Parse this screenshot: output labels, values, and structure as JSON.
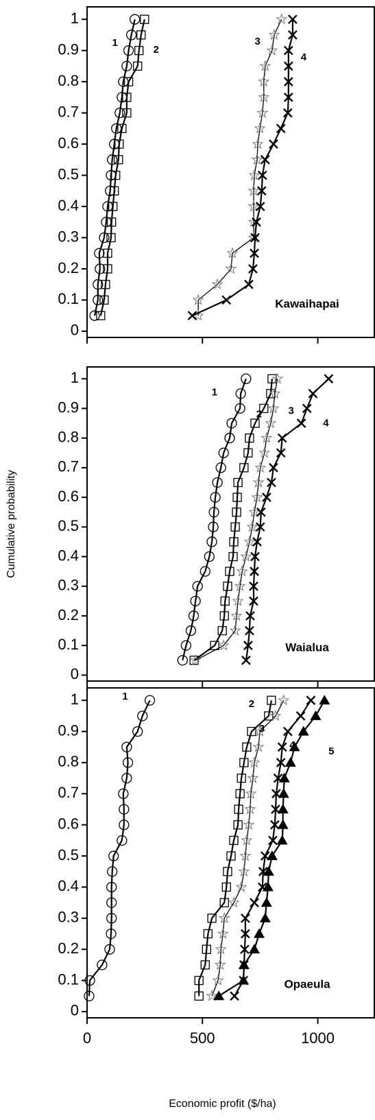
{
  "chart_data": [
    {
      "type": "line",
      "annotation": "Kawaihapai",
      "xlim": [
        0,
        1245
      ],
      "ylim": [
        -0.02,
        1.04
      ],
      "yticks": [
        0,
        0.1,
        0.2,
        0.3,
        0.4,
        0.5,
        0.6,
        0.7,
        0.8,
        0.9,
        1
      ],
      "series": [
        {
          "name": "1",
          "marker": "circle",
          "color": "#000000",
          "x": [
            33,
            47,
            47,
            56,
            53,
            74,
            83,
            89,
            100,
            104,
            109,
            118,
            127,
            142,
            151,
            157,
            172,
            180,
            192,
            207
          ],
          "values": [
            0.05,
            0.1,
            0.15,
            0.2,
            0.25,
            0.3,
            0.35,
            0.4,
            0.45,
            0.5,
            0.55,
            0.6,
            0.65,
            0.7,
            0.75,
            0.8,
            0.85,
            0.9,
            0.95,
            1
          ]
        },
        {
          "name": "2",
          "marker": "square",
          "color": "#000000",
          "x": [
            59,
            74,
            80,
            89,
            89,
            104,
            106,
            112,
            118,
            124,
            136,
            139,
            151,
            172,
            172,
            180,
            219,
            225,
            234,
            249
          ],
          "values": [
            0.05,
            0.1,
            0.15,
            0.2,
            0.25,
            0.3,
            0.35,
            0.4,
            0.45,
            0.5,
            0.55,
            0.6,
            0.65,
            0.7,
            0.75,
            0.8,
            0.85,
            0.9,
            0.95,
            1
          ]
        },
        {
          "name": "3",
          "marker": "star",
          "color": "#777777",
          "x": [
            482,
            482,
            565,
            624,
            630,
            722,
            722,
            722,
            722,
            725,
            737,
            740,
            749,
            760,
            766,
            766,
            772,
            802,
            811,
            843
          ],
          "values": [
            0.05,
            0.1,
            0.15,
            0.2,
            0.25,
            0.3,
            0.35,
            0.4,
            0.45,
            0.5,
            0.55,
            0.6,
            0.65,
            0.7,
            0.75,
            0.8,
            0.85,
            0.9,
            0.95,
            1
          ]
        },
        {
          "name": "4",
          "marker": "cross",
          "color": "#000000",
          "x": [
            456,
            604,
            701,
            719,
            725,
            728,
            734,
            751,
            757,
            760,
            772,
            808,
            840,
            870,
            873,
            873,
            873,
            873,
            891,
            891
          ],
          "values": [
            0.05,
            0.1,
            0.15,
            0.2,
            0.25,
            0.3,
            0.35,
            0.4,
            0.45,
            0.5,
            0.55,
            0.6,
            0.65,
            0.7,
            0.75,
            0.8,
            0.85,
            0.9,
            0.95,
            1
          ]
        }
      ]
    },
    {
      "type": "line",
      "annotation": "Waialua",
      "ylabel": "Cumulative probability",
      "xlim": [
        0,
        1245
      ],
      "ylim": [
        -0.02,
        1.04
      ],
      "yticks": [
        0,
        0.1,
        0.2,
        0.3,
        0.4,
        0.5,
        0.6,
        0.7,
        0.8,
        0.9,
        1
      ],
      "series": [
        {
          "name": "1",
          "marker": "circle",
          "color": "#000000",
          "x": [
            414,
            429,
            450,
            462,
            470,
            479,
            512,
            530,
            541,
            547,
            550,
            556,
            565,
            580,
            592,
            618,
            627,
            663,
            666,
            689
          ],
          "values": [
            0.05,
            0.1,
            0.15,
            0.2,
            0.25,
            0.3,
            0.35,
            0.4,
            0.45,
            0.5,
            0.55,
            0.6,
            0.65,
            0.7,
            0.75,
            0.8,
            0.85,
            0.9,
            0.95,
            1
          ]
        },
        {
          "name": "2",
          "marker": "square",
          "color": "#000000",
          "x": [
            464,
            553,
            586,
            595,
            598,
            609,
            618,
            633,
            636,
            642,
            648,
            651,
            654,
            680,
            698,
            704,
            728,
            766,
            796,
            802
          ],
          "values": [
            0.05,
            0.1,
            0.15,
            0.2,
            0.25,
            0.3,
            0.35,
            0.4,
            0.45,
            0.5,
            0.55,
            0.6,
            0.65,
            0.7,
            0.75,
            0.8,
            0.85,
            0.9,
            0.95,
            1
          ]
        },
        {
          "name": "3",
          "marker": "star",
          "color": "#777777",
          "x": [
            470,
            592,
            642,
            648,
            654,
            663,
            672,
            689,
            704,
            716,
            725,
            737,
            743,
            751,
            769,
            778,
            796,
            808,
            814,
            825
          ],
          "values": [
            0.05,
            0.1,
            0.15,
            0.2,
            0.25,
            0.3,
            0.35,
            0.4,
            0.45,
            0.5,
            0.55,
            0.6,
            0.65,
            0.7,
            0.75,
            0.8,
            0.85,
            0.9,
            0.95,
            1
          ]
        },
        {
          "name": "4",
          "marker": "cross",
          "color": "#000000",
          "x": [
            689,
            698,
            704,
            707,
            722,
            722,
            725,
            728,
            737,
            751,
            754,
            778,
            799,
            808,
            840,
            846,
            929,
            953,
            979,
            1047
          ],
          "values": [
            0.05,
            0.1,
            0.15,
            0.2,
            0.25,
            0.3,
            0.35,
            0.4,
            0.45,
            0.5,
            0.55,
            0.6,
            0.65,
            0.7,
            0.75,
            0.8,
            0.85,
            0.9,
            0.95,
            1
          ]
        }
      ]
    },
    {
      "type": "line",
      "annotation": "Opaeula",
      "xlabel": "Economic profit ($/ha)",
      "xlim": [
        0,
        1245
      ],
      "ylim": [
        -0.02,
        1.04
      ],
      "xticks": [
        0,
        500,
        1000
      ],
      "yticks": [
        0,
        0.1,
        0.2,
        0.3,
        0.4,
        0.5,
        0.6,
        0.7,
        0.8,
        0.9,
        1
      ],
      "series": [
        {
          "name": "1",
          "marker": "circle",
          "color": "#000000",
          "x": [
            9,
            12,
            65,
            98,
            104,
            106,
            106,
            106,
            109,
            115,
            151,
            160,
            160,
            157,
            172,
            177,
            172,
            219,
            240,
            272
          ],
          "values": [
            0.05,
            0.1,
            0.15,
            0.2,
            0.25,
            0.3,
            0.35,
            0.4,
            0.45,
            0.5,
            0.55,
            0.6,
            0.65,
            0.7,
            0.75,
            0.8,
            0.85,
            0.9,
            0.95,
            1
          ]
        },
        {
          "name": "2",
          "marker": "square",
          "color": "#000000",
          "x": [
            485,
            485,
            512,
            518,
            524,
            541,
            595,
            604,
            609,
            624,
            636,
            654,
            657,
            663,
            669,
            680,
            692,
            713,
            787,
            799
          ],
          "values": [
            0.05,
            0.1,
            0.15,
            0.2,
            0.25,
            0.3,
            0.35,
            0.4,
            0.45,
            0.5,
            0.55,
            0.6,
            0.65,
            0.7,
            0.75,
            0.8,
            0.85,
            0.9,
            0.95,
            1
          ]
        },
        {
          "name": "3",
          "marker": "star",
          "color": "#777777",
          "x": [
            541,
            568,
            577,
            580,
            589,
            595,
            636,
            669,
            680,
            686,
            692,
            701,
            707,
            710,
            719,
            725,
            743,
            749,
            817,
            852
          ],
          "values": [
            0.05,
            0.1,
            0.15,
            0.2,
            0.25,
            0.3,
            0.35,
            0.4,
            0.45,
            0.5,
            0.55,
            0.6,
            0.65,
            0.7,
            0.75,
            0.8,
            0.85,
            0.9,
            0.95,
            1
          ]
        },
        {
          "name": "4",
          "marker": "cross",
          "color": "#000000",
          "x": [
            639,
            678,
            680,
            683,
            686,
            686,
            725,
            760,
            763,
            772,
            805,
            814,
            817,
            820,
            828,
            840,
            846,
            870,
            926,
            970
          ],
          "values": [
            0.05,
            0.1,
            0.15,
            0.2,
            0.25,
            0.3,
            0.35,
            0.4,
            0.45,
            0.5,
            0.55,
            0.6,
            0.65,
            0.7,
            0.75,
            0.8,
            0.85,
            0.9,
            0.95,
            1
          ]
        },
        {
          "name": "5",
          "marker": "triangle",
          "color": "#000000",
          "x": [
            571,
            678,
            680,
            725,
            746,
            772,
            778,
            784,
            787,
            802,
            846,
            849,
            849,
            852,
            855,
            882,
            899,
            938,
            991,
            1029
          ],
          "values": [
            0.05,
            0.1,
            0.15,
            0.2,
            0.25,
            0.3,
            0.35,
            0.4,
            0.45,
            0.5,
            0.55,
            0.6,
            0.65,
            0.7,
            0.75,
            0.8,
            0.85,
            0.9,
            0.95,
            1
          ]
        }
      ]
    }
  ]
}
